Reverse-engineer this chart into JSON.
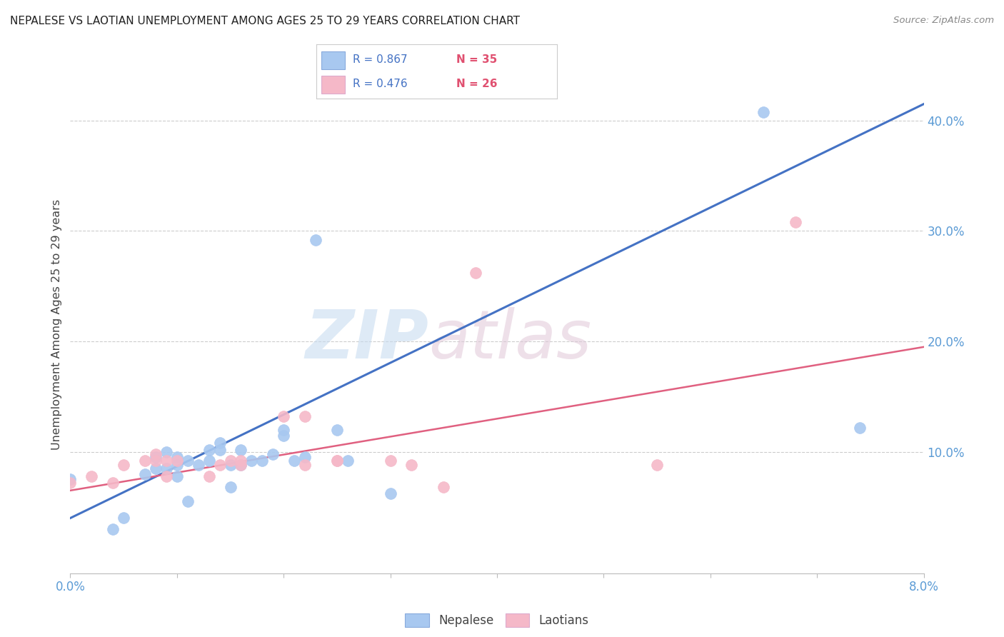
{
  "title": "NEPALESE VS LAOTIAN UNEMPLOYMENT AMONG AGES 25 TO 29 YEARS CORRELATION CHART",
  "source": "Source: ZipAtlas.com",
  "ylabel": "Unemployment Among Ages 25 to 29 years",
  "right_yticks": [
    "40.0%",
    "30.0%",
    "20.0%",
    "10.0%"
  ],
  "right_ytick_vals": [
    0.4,
    0.3,
    0.2,
    0.1
  ],
  "legend_label_blue": "Nepalese",
  "legend_label_pink": "Laotians",
  "blue_scatter_color": "#A8C8F0",
  "pink_scatter_color": "#F5B8C8",
  "blue_line_color": "#4472C4",
  "pink_line_color": "#E06080",
  "background_color": "#FFFFFF",
  "nepalese_x": [
    0.0,
    0.004,
    0.005,
    0.007,
    0.008,
    0.008,
    0.009,
    0.009,
    0.01,
    0.01,
    0.01,
    0.011,
    0.011,
    0.012,
    0.013,
    0.013,
    0.014,
    0.014,
    0.015,
    0.015,
    0.016,
    0.016,
    0.017,
    0.018,
    0.019,
    0.02,
    0.02,
    0.021,
    0.022,
    0.023,
    0.025,
    0.026,
    0.03,
    0.065,
    0.074
  ],
  "nepalese_y": [
    0.075,
    0.03,
    0.04,
    0.08,
    0.085,
    0.095,
    0.085,
    0.1,
    0.078,
    0.088,
    0.095,
    0.055,
    0.092,
    0.088,
    0.102,
    0.092,
    0.102,
    0.108,
    0.068,
    0.088,
    0.102,
    0.088,
    0.092,
    0.092,
    0.098,
    0.115,
    0.12,
    0.092,
    0.095,
    0.292,
    0.12,
    0.092,
    0.062,
    0.408,
    0.122
  ],
  "laotian_x": [
    0.0,
    0.002,
    0.004,
    0.005,
    0.007,
    0.008,
    0.008,
    0.009,
    0.009,
    0.01,
    0.013,
    0.014,
    0.015,
    0.016,
    0.016,
    0.02,
    0.022,
    0.022,
    0.025,
    0.025,
    0.03,
    0.032,
    0.035,
    0.038,
    0.055,
    0.068
  ],
  "laotian_y": [
    0.072,
    0.078,
    0.072,
    0.088,
    0.092,
    0.092,
    0.098,
    0.078,
    0.092,
    0.092,
    0.078,
    0.088,
    0.092,
    0.088,
    0.092,
    0.132,
    0.088,
    0.132,
    0.092,
    0.092,
    0.092,
    0.088,
    0.068,
    0.262,
    0.088,
    0.308
  ],
  "blue_line_x": [
    0.0,
    0.08
  ],
  "blue_line_y": [
    0.04,
    0.415
  ],
  "pink_line_x": [
    0.0,
    0.08
  ],
  "pink_line_y": [
    0.065,
    0.195
  ],
  "xlim": [
    0.0,
    0.08
  ],
  "ylim": [
    -0.01,
    0.44
  ],
  "legend_R_blue": "R = 0.867",
  "legend_N_blue": "N = 35",
  "legend_R_pink": "R = 0.476",
  "legend_N_pink": "N = 26"
}
